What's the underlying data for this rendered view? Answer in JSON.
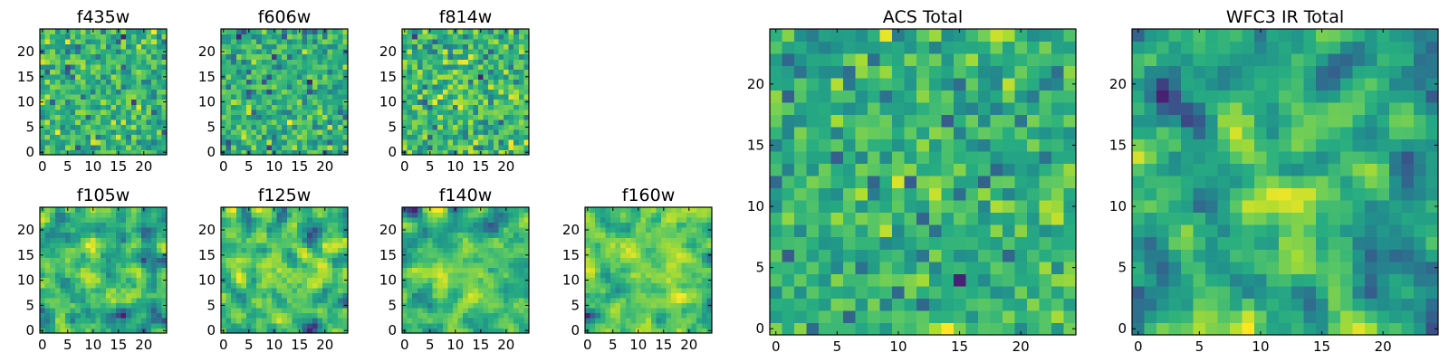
{
  "chart_data": [
    {
      "type": "heatmap",
      "title": "f435w",
      "grid_size": 25,
      "xlim": [
        -0.5,
        24.5
      ],
      "ylim": [
        -0.5,
        24.5
      ],
      "xticks": [
        0,
        5,
        10,
        15,
        20
      ],
      "yticks": [
        0,
        5,
        10,
        15,
        20
      ],
      "colormap": "viridis",
      "seed": 11,
      "noise": 1.0,
      "blob_amp": 0.1,
      "blob_center": [
        12,
        12
      ],
      "blob_sigma": 4,
      "smooth": 0,
      "grid": false
    },
    {
      "type": "heatmap",
      "title": "f606w",
      "grid_size": 25,
      "xlim": [
        -0.5,
        24.5
      ],
      "ylim": [
        -0.5,
        24.5
      ],
      "xticks": [
        0,
        5,
        10,
        15,
        20
      ],
      "yticks": [
        0,
        5,
        10,
        15,
        20
      ],
      "colormap": "viridis",
      "seed": 23,
      "noise": 1.0,
      "blob_amp": 0.1,
      "blob_center": [
        12,
        12
      ],
      "blob_sigma": 4,
      "smooth": 0,
      "grid": false
    },
    {
      "type": "heatmap",
      "title": "f814w",
      "grid_size": 25,
      "xlim": [
        -0.5,
        24.5
      ],
      "ylim": [
        -0.5,
        24.5
      ],
      "xticks": [
        0,
        5,
        10,
        15,
        20
      ],
      "yticks": [
        0,
        5,
        10,
        15,
        20
      ],
      "colormap": "viridis",
      "seed": 37,
      "noise": 1.0,
      "blob_amp": 0.15,
      "blob_center": [
        12,
        12
      ],
      "blob_sigma": 4,
      "smooth": 0,
      "grid": false
    },
    {
      "type": "heatmap",
      "title": "f105w",
      "grid_size": 25,
      "xlim": [
        -0.5,
        24.5
      ],
      "ylim": [
        -0.5,
        24.5
      ],
      "xticks": [
        0,
        5,
        10,
        15,
        20
      ],
      "yticks": [
        0,
        5,
        10,
        15,
        20
      ],
      "colormap": "viridis",
      "seed": 41,
      "noise": 0.9,
      "blob_amp": 0.9,
      "blob_center": [
        13,
        10
      ],
      "blob_sigma": 4.5,
      "smooth": 1,
      "grid": false
    },
    {
      "type": "heatmap",
      "title": "f125w",
      "grid_size": 25,
      "xlim": [
        -0.5,
        24.5
      ],
      "ylim": [
        -0.5,
        24.5
      ],
      "xticks": [
        0,
        5,
        10,
        15,
        20
      ],
      "yticks": [
        0,
        5,
        10,
        15,
        20
      ],
      "colormap": "viridis",
      "seed": 53,
      "noise": 1.0,
      "blob_amp": 0.6,
      "blob_center": [
        12,
        11
      ],
      "blob_sigma": 4.5,
      "smooth": 1,
      "grid": false
    },
    {
      "type": "heatmap",
      "title": "f140w",
      "grid_size": 25,
      "xlim": [
        -0.5,
        24.5
      ],
      "ylim": [
        -0.5,
        24.5
      ],
      "xticks": [
        0,
        5,
        10,
        15,
        20
      ],
      "yticks": [
        0,
        5,
        10,
        15,
        20
      ],
      "colormap": "viridis",
      "seed": 67,
      "noise": 0.9,
      "blob_amp": 0.8,
      "blob_center": [
        11,
        9
      ],
      "blob_sigma": 5,
      "smooth": 1,
      "grid": false
    },
    {
      "type": "heatmap",
      "title": "f160w",
      "grid_size": 25,
      "xlim": [
        -0.5,
        24.5
      ],
      "ylim": [
        -0.5,
        24.5
      ],
      "xticks": [
        0,
        5,
        10,
        15,
        20
      ],
      "yticks": [
        0,
        5,
        10,
        15,
        20
      ],
      "colormap": "viridis",
      "seed": 79,
      "noise": 0.9,
      "blob_amp": 1.0,
      "blob_center": [
        12,
        12
      ],
      "blob_sigma": 3.5,
      "smooth": 1,
      "grid": false
    },
    {
      "type": "heatmap",
      "title": "ACS Total",
      "grid_size": 25,
      "xlim": [
        -0.5,
        24.5
      ],
      "ylim": [
        -0.5,
        24.5
      ],
      "xticks": [
        0,
        5,
        10,
        15,
        20
      ],
      "yticks": [
        0,
        5,
        10,
        15,
        20
      ],
      "colormap": "viridis",
      "seed": 97,
      "noise": 0.6,
      "blob_amp": 0.1,
      "blob_center": [
        12,
        12
      ],
      "blob_sigma": 4,
      "smooth": 0,
      "grid": false
    },
    {
      "type": "heatmap",
      "title": "WFC3 IR Total",
      "grid_size": 25,
      "xlim": [
        -0.5,
        24.5
      ],
      "ylim": [
        -0.5,
        24.5
      ],
      "xticks": [
        0,
        5,
        10,
        15,
        20
      ],
      "yticks": [
        0,
        5,
        10,
        15,
        20
      ],
      "colormap": "viridis",
      "seed": 113,
      "noise": 0.55,
      "blob_amp": 1.2,
      "blob_center": [
        12,
        12
      ],
      "blob_sigma": 3.5,
      "smooth": 1,
      "grid": false
    }
  ]
}
